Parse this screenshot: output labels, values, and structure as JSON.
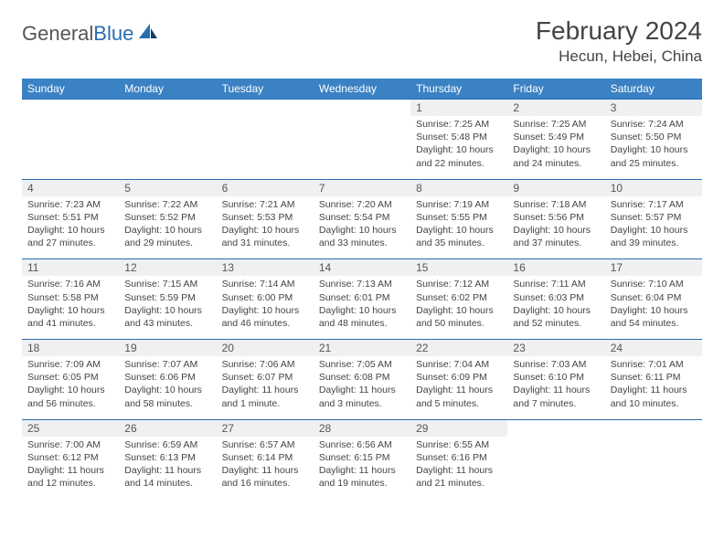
{
  "brand": {
    "part1": "General",
    "part2": "Blue"
  },
  "title": "February 2024",
  "location": "Hecun, Hebei, China",
  "colors": {
    "header_bg": "#3b82c4",
    "rule": "#2a6db0",
    "daynum_bg": "#eef0f2",
    "text": "#444444",
    "brand_blue": "#2a6db0"
  },
  "weekdays": [
    "Sunday",
    "Monday",
    "Tuesday",
    "Wednesday",
    "Thursday",
    "Friday",
    "Saturday"
  ],
  "weeks": [
    [
      null,
      null,
      null,
      null,
      {
        "n": "1",
        "sunrise": "7:25 AM",
        "sunset": "5:48 PM",
        "daylight": "10 hours and 22 minutes."
      },
      {
        "n": "2",
        "sunrise": "7:25 AM",
        "sunset": "5:49 PM",
        "daylight": "10 hours and 24 minutes."
      },
      {
        "n": "3",
        "sunrise": "7:24 AM",
        "sunset": "5:50 PM",
        "daylight": "10 hours and 25 minutes."
      }
    ],
    [
      {
        "n": "4",
        "sunrise": "7:23 AM",
        "sunset": "5:51 PM",
        "daylight": "10 hours and 27 minutes."
      },
      {
        "n": "5",
        "sunrise": "7:22 AM",
        "sunset": "5:52 PM",
        "daylight": "10 hours and 29 minutes."
      },
      {
        "n": "6",
        "sunrise": "7:21 AM",
        "sunset": "5:53 PM",
        "daylight": "10 hours and 31 minutes."
      },
      {
        "n": "7",
        "sunrise": "7:20 AM",
        "sunset": "5:54 PM",
        "daylight": "10 hours and 33 minutes."
      },
      {
        "n": "8",
        "sunrise": "7:19 AM",
        "sunset": "5:55 PM",
        "daylight": "10 hours and 35 minutes."
      },
      {
        "n": "9",
        "sunrise": "7:18 AM",
        "sunset": "5:56 PM",
        "daylight": "10 hours and 37 minutes."
      },
      {
        "n": "10",
        "sunrise": "7:17 AM",
        "sunset": "5:57 PM",
        "daylight": "10 hours and 39 minutes."
      }
    ],
    [
      {
        "n": "11",
        "sunrise": "7:16 AM",
        "sunset": "5:58 PM",
        "daylight": "10 hours and 41 minutes."
      },
      {
        "n": "12",
        "sunrise": "7:15 AM",
        "sunset": "5:59 PM",
        "daylight": "10 hours and 43 minutes."
      },
      {
        "n": "13",
        "sunrise": "7:14 AM",
        "sunset": "6:00 PM",
        "daylight": "10 hours and 46 minutes."
      },
      {
        "n": "14",
        "sunrise": "7:13 AM",
        "sunset": "6:01 PM",
        "daylight": "10 hours and 48 minutes."
      },
      {
        "n": "15",
        "sunrise": "7:12 AM",
        "sunset": "6:02 PM",
        "daylight": "10 hours and 50 minutes."
      },
      {
        "n": "16",
        "sunrise": "7:11 AM",
        "sunset": "6:03 PM",
        "daylight": "10 hours and 52 minutes."
      },
      {
        "n": "17",
        "sunrise": "7:10 AM",
        "sunset": "6:04 PM",
        "daylight": "10 hours and 54 minutes."
      }
    ],
    [
      {
        "n": "18",
        "sunrise": "7:09 AM",
        "sunset": "6:05 PM",
        "daylight": "10 hours and 56 minutes."
      },
      {
        "n": "19",
        "sunrise": "7:07 AM",
        "sunset": "6:06 PM",
        "daylight": "10 hours and 58 minutes."
      },
      {
        "n": "20",
        "sunrise": "7:06 AM",
        "sunset": "6:07 PM",
        "daylight": "11 hours and 1 minute."
      },
      {
        "n": "21",
        "sunrise": "7:05 AM",
        "sunset": "6:08 PM",
        "daylight": "11 hours and 3 minutes."
      },
      {
        "n": "22",
        "sunrise": "7:04 AM",
        "sunset": "6:09 PM",
        "daylight": "11 hours and 5 minutes."
      },
      {
        "n": "23",
        "sunrise": "7:03 AM",
        "sunset": "6:10 PM",
        "daylight": "11 hours and 7 minutes."
      },
      {
        "n": "24",
        "sunrise": "7:01 AM",
        "sunset": "6:11 PM",
        "daylight": "11 hours and 10 minutes."
      }
    ],
    [
      {
        "n": "25",
        "sunrise": "7:00 AM",
        "sunset": "6:12 PM",
        "daylight": "11 hours and 12 minutes."
      },
      {
        "n": "26",
        "sunrise": "6:59 AM",
        "sunset": "6:13 PM",
        "daylight": "11 hours and 14 minutes."
      },
      {
        "n": "27",
        "sunrise": "6:57 AM",
        "sunset": "6:14 PM",
        "daylight": "11 hours and 16 minutes."
      },
      {
        "n": "28",
        "sunrise": "6:56 AM",
        "sunset": "6:15 PM",
        "daylight": "11 hours and 19 minutes."
      },
      {
        "n": "29",
        "sunrise": "6:55 AM",
        "sunset": "6:16 PM",
        "daylight": "11 hours and 21 minutes."
      },
      null,
      null
    ]
  ],
  "labels": {
    "sunrise": "Sunrise: ",
    "sunset": "Sunset: ",
    "daylight": "Daylight: "
  }
}
